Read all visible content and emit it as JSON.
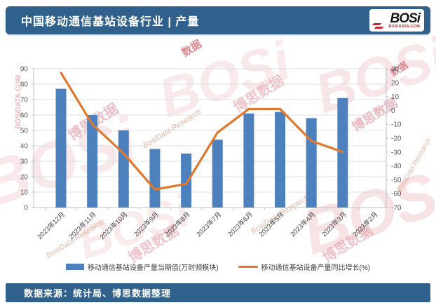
{
  "header": {
    "title": "中国移动通信基站设备行业 | 产量",
    "logo": {
      "text": "BOSi",
      "subtext": "BOSIDATA.COM"
    }
  },
  "footer": {
    "source": "数据来源：统计局、博思数据整理"
  },
  "legend": {
    "bar_label": "移动通信基站设备产量当期值(万射频模块)",
    "line_label": "移动通信基站设备产量同比增长(%)"
  },
  "watermark": {
    "brand": "BOSi",
    "cn": "博思数据",
    "en": "BosiData Research",
    "domain": "BOSiDATA.COM",
    "misc": "数据"
  },
  "chart_data": {
    "type": "bar",
    "title": "中国移动通信基站设备行业产量",
    "categories": [
      "2023年12月",
      "2023年11月",
      "2023年10月",
      "2023年9月",
      "2023年8月",
      "2023年7月",
      "2023年6月",
      "2023年5月",
      "2023年4月",
      "2023年3月",
      "2023年2月"
    ],
    "series": [
      {
        "name": "移动通信基站设备产量当期值(万射频模块)",
        "type": "bar",
        "axis": "left",
        "color": "#4C81BE",
        "values": [
          77,
          60,
          50,
          38,
          35,
          44,
          61,
          62,
          58,
          71,
          null
        ]
      },
      {
        "name": "移动通信基站设备产量同比增长(%)",
        "type": "line",
        "axis": "right",
        "color": "#E2782E",
        "values": [
          27,
          -10,
          -31,
          -57,
          -53,
          -16,
          1,
          1,
          -22,
          -30,
          null
        ]
      }
    ],
    "left_axis": {
      "min": 0,
      "max": 90,
      "step": 10
    },
    "right_axis": {
      "min": -70,
      "max": 30,
      "step": 10
    },
    "grid": true,
    "legend_position": "bottom"
  }
}
